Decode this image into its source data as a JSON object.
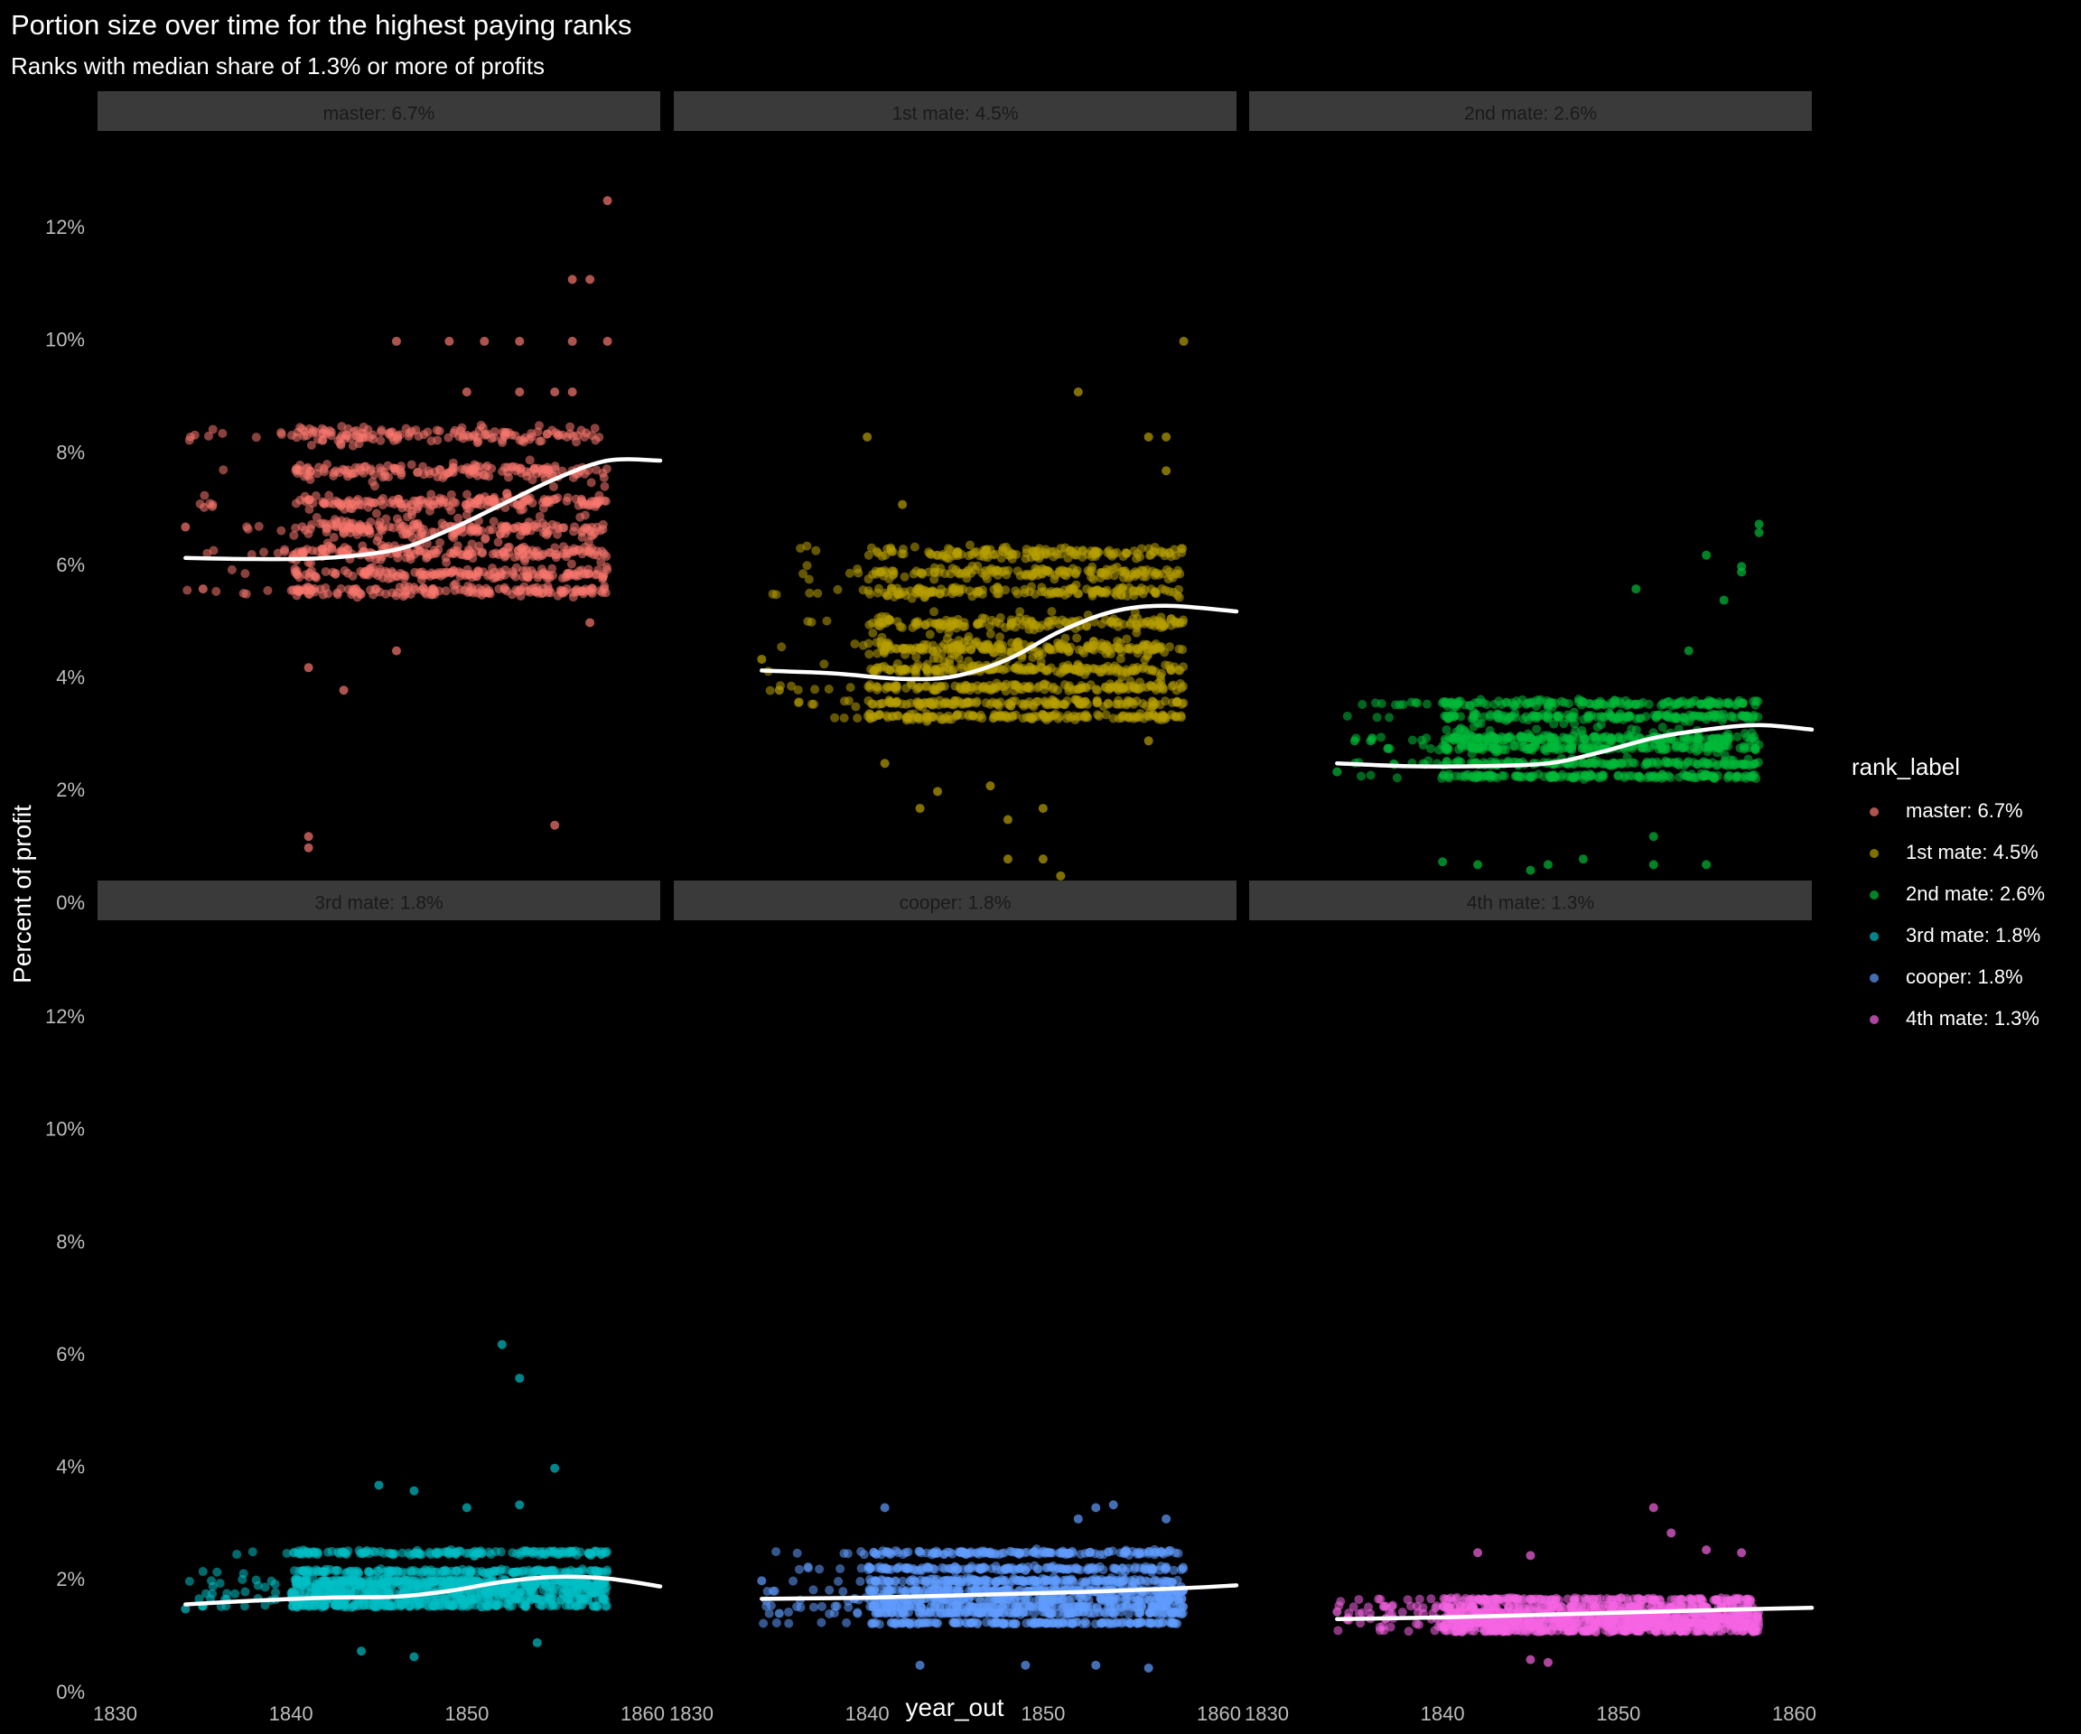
{
  "chart_data": {
    "type": "scatter",
    "title": "Portion size over time for the highest paying ranks",
    "subtitle": "Ranks with median share of 1.3% or more of profits",
    "xlabel": "year_out",
    "ylabel": "Percent of profit",
    "xlim": [
      1829,
      1861
    ],
    "ylim": [
      0,
      0.13
    ],
    "x_ticks": [
      1830,
      1840,
      1850,
      1860
    ],
    "x_tick_labels": [
      "1830",
      "1840",
      "1850",
      "1860"
    ],
    "y_ticks": [
      0,
      0.02,
      0.04,
      0.06,
      0.08,
      0.1,
      0.12
    ],
    "y_tick_labels": [
      "0%",
      "2%",
      "4%",
      "6%",
      "8%",
      "10%",
      "12%"
    ],
    "facet_layout": {
      "rows": 2,
      "cols": 3
    },
    "legend": {
      "title": "rank_label",
      "position": "right",
      "entries": [
        "master: 6.7%",
        "1st mate: 4.5%",
        "2nd mate: 2.6%",
        "3rd mate: 1.8%",
        "cooper: 1.8%",
        "4th mate: 1.3%"
      ]
    },
    "smooth_color": "#ffffff",
    "series": [
      {
        "name": "master: 6.7%",
        "color": "#F8766D",
        "data_x_range": [
          1834,
          1858
        ],
        "bands": [
          0.0556,
          0.0588,
          0.0625,
          0.0667,
          0.0714,
          0.0769,
          0.0833
        ],
        "outliers": [
          [
            1834,
            0.067
          ],
          [
            1835,
            0.056
          ],
          [
            1841,
            0.042
          ],
          [
            1843,
            0.038
          ],
          [
            1841,
            0.012
          ],
          [
            1841,
            0.01
          ],
          [
            1855,
            0.014
          ],
          [
            1857,
            0.05
          ],
          [
            1856,
            0.111
          ],
          [
            1857,
            0.111
          ],
          [
            1858,
            0.125
          ],
          [
            1846,
            0.1
          ],
          [
            1849,
            0.1
          ],
          [
            1851,
            0.1
          ],
          [
            1853,
            0.1
          ],
          [
            1856,
            0.1
          ],
          [
            1858,
            0.1
          ],
          [
            1850,
            0.091
          ],
          [
            1853,
            0.091
          ],
          [
            1855,
            0.091
          ],
          [
            1856,
            0.091
          ],
          [
            1846,
            0.045
          ]
        ],
        "smooth": [
          [
            1834,
            0.0615
          ],
          [
            1838,
            0.0613
          ],
          [
            1842,
            0.0615
          ],
          [
            1846,
            0.063
          ],
          [
            1849,
            0.0665
          ],
          [
            1852,
            0.071
          ],
          [
            1855,
            0.0755
          ],
          [
            1858,
            0.0788
          ],
          [
            1861,
            0.0788
          ]
        ]
      },
      {
        "name": "1st mate: 4.5%",
        "color": "#B79F00",
        "data_x_range": [
          1834,
          1858
        ],
        "bands": [
          0.0333,
          0.0357,
          0.0385,
          0.0417,
          0.0455,
          0.05,
          0.0556,
          0.0588,
          0.0625
        ],
        "outliers": [
          [
            1834,
            0.0435
          ],
          [
            1835,
            0.038
          ],
          [
            1840,
            0.083
          ],
          [
            1842,
            0.071
          ],
          [
            1841,
            0.025
          ],
          [
            1843,
            0.017
          ],
          [
            1844,
            0.02
          ],
          [
            1847,
            0.021
          ],
          [
            1848,
            0.015
          ],
          [
            1848,
            0.008
          ],
          [
            1850,
            0.008
          ],
          [
            1851,
            0.005
          ],
          [
            1850,
            0.017
          ],
          [
            1852,
            0.091
          ],
          [
            1856,
            0.083
          ],
          [
            1857,
            0.083
          ],
          [
            1858,
            0.1
          ],
          [
            1857,
            0.077
          ],
          [
            1856,
            0.029
          ]
        ],
        "smooth": [
          [
            1834,
            0.0415
          ],
          [
            1838,
            0.041
          ],
          [
            1842,
            0.04
          ],
          [
            1845,
            0.0405
          ],
          [
            1848,
            0.0435
          ],
          [
            1851,
            0.0485
          ],
          [
            1854,
            0.052
          ],
          [
            1857,
            0.053
          ],
          [
            1861,
            0.052
          ]
        ]
      },
      {
        "name": "2nd mate: 2.6%",
        "color": "#00BA38",
        "data_x_range": [
          1834,
          1858
        ],
        "bands": [
          0.0227,
          0.025,
          0.0278,
          0.0294,
          0.0333,
          0.0357
        ],
        "outliers": [
          [
            1834,
            0.0235
          ],
          [
            1835,
            0.029
          ],
          [
            1836,
            0.0295
          ],
          [
            1840,
            0.0075
          ],
          [
            1842,
            0.007
          ],
          [
            1845,
            0.006
          ],
          [
            1846,
            0.007
          ],
          [
            1848,
            0.008
          ],
          [
            1852,
            0.007
          ],
          [
            1855,
            0.007
          ],
          [
            1856,
            0.054
          ],
          [
            1857,
            0.059
          ],
          [
            1858,
            0.066
          ],
          [
            1858,
            0.0675
          ],
          [
            1855,
            0.062
          ],
          [
            1857,
            0.06
          ],
          [
            1851,
            0.056
          ],
          [
            1854,
            0.045
          ],
          [
            1852,
            0.012
          ]
        ],
        "smooth": [
          [
            1834,
            0.025
          ],
          [
            1838,
            0.0245
          ],
          [
            1842,
            0.0245
          ],
          [
            1846,
            0.025
          ],
          [
            1849,
            0.027
          ],
          [
            1852,
            0.0295
          ],
          [
            1855,
            0.031
          ],
          [
            1858,
            0.0318
          ],
          [
            1861,
            0.031
          ]
        ]
      },
      {
        "name": "3rd mate: 1.8%",
        "color": "#00BFC4",
        "data_x_range": [
          1834,
          1858
        ],
        "bands": [
          0.0156,
          0.0167,
          0.0179,
          0.0192,
          0.02,
          0.0217,
          0.025
        ],
        "outliers": [
          [
            1834,
            0.015
          ],
          [
            1835,
            0.0155
          ],
          [
            1844,
            0.0075
          ],
          [
            1847,
            0.0065
          ],
          [
            1853,
            0.056
          ],
          [
            1852,
            0.062
          ],
          [
            1855,
            0.04
          ],
          [
            1845,
            0.037
          ],
          [
            1847,
            0.036
          ],
          [
            1854,
            0.009
          ],
          [
            1853,
            0.0335
          ],
          [
            1850,
            0.033
          ]
        ],
        "smooth": [
          [
            1834,
            0.0158
          ],
          [
            1838,
            0.0165
          ],
          [
            1842,
            0.017
          ],
          [
            1846,
            0.0172
          ],
          [
            1849,
            0.0182
          ],
          [
            1852,
            0.0198
          ],
          [
            1855,
            0.0207
          ],
          [
            1858,
            0.0204
          ],
          [
            1861,
            0.019
          ]
        ]
      },
      {
        "name": "cooper: 1.8%",
        "color": "#619CFF",
        "data_x_range": [
          1834,
          1858
        ],
        "bands": [
          0.0125,
          0.0143,
          0.0154,
          0.0167,
          0.0182,
          0.02,
          0.0222,
          0.025
        ],
        "outliers": [
          [
            1834,
            0.02
          ],
          [
            1835,
            0.0142
          ],
          [
            1841,
            0.033
          ],
          [
            1853,
            0.033
          ],
          [
            1854,
            0.0335
          ],
          [
            1852,
            0.031
          ],
          [
            1857,
            0.031
          ],
          [
            1843,
            0.005
          ],
          [
            1849,
            0.005
          ],
          [
            1853,
            0.005
          ],
          [
            1856,
            0.0045
          ]
        ],
        "smooth": [
          [
            1834,
            0.0168
          ],
          [
            1840,
            0.017
          ],
          [
            1846,
            0.0175
          ],
          [
            1852,
            0.018
          ],
          [
            1858,
            0.0187
          ],
          [
            1861,
            0.0192
          ]
        ]
      },
      {
        "name": "4th mate: 1.3%",
        "color": "#F564E3",
        "data_x_range": [
          1834,
          1858
        ],
        "bands": [
          0.0111,
          0.0119,
          0.0125,
          0.0133,
          0.0143,
          0.0154,
          0.0167
        ],
        "outliers": [
          [
            1834,
            0.0145
          ],
          [
            1841,
            0.0155
          ],
          [
            1842,
            0.025
          ],
          [
            1845,
            0.0245
          ],
          [
            1852,
            0.033
          ],
          [
            1853,
            0.0285
          ],
          [
            1855,
            0.0255
          ],
          [
            1857,
            0.025
          ],
          [
            1845,
            0.006
          ],
          [
            1846,
            0.0055
          ]
        ],
        "smooth": [
          [
            1834,
            0.0132
          ],
          [
            1840,
            0.0135
          ],
          [
            1846,
            0.014
          ],
          [
            1852,
            0.0145
          ],
          [
            1858,
            0.015
          ],
          [
            1861,
            0.0152
          ]
        ]
      }
    ]
  }
}
